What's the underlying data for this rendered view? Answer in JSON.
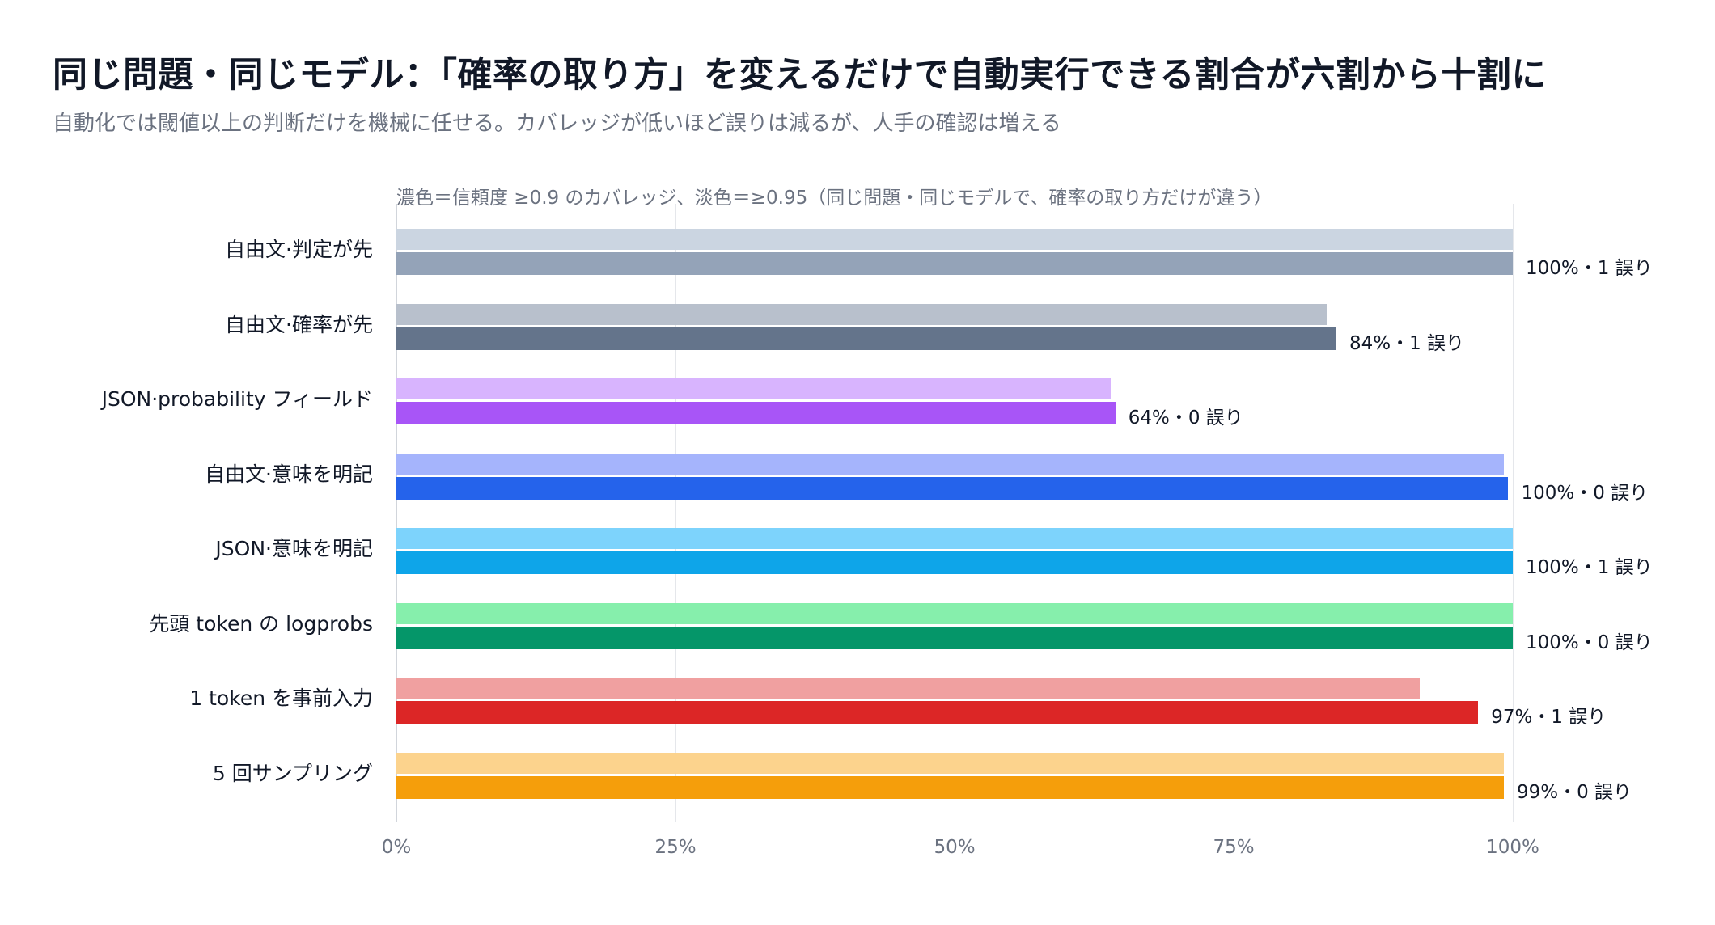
{
  "header": {
    "title": "同じ問題・同じモデル：「確率の取り方」を変えるだけで自動実行できる割合が六割から十割に",
    "subtitle": "自動化では閾値以上の判断だけを機械に任せる。カバレッジが低いほど誤りは減るが、人手の確認は増える"
  },
  "chart_data": {
    "type": "bar",
    "orientation": "horizontal",
    "note": "濃色＝信頼度 ≥0.9 のカバレッジ、淡色＝≥0.95（同じ問題・同じモデルで、確率の取り方だけが違う）",
    "categories": [
      "自由文·判定が先",
      "自由文·確率が先",
      "JSON·probability フィールド",
      "自由文·意味を明記",
      "JSON·意味を明記",
      "先頭 token の logprobs",
      "1 token を事前入力",
      "5 回サンプリング"
    ],
    "series": [
      {
        "threshold": "0.95",
        "values": [
          100,
          83.3,
          64,
          99.2,
          100,
          100,
          91.7,
          99.2
        ]
      },
      {
        "threshold": "0.9",
        "values": [
          100,
          84.2,
          64.4,
          99.6,
          100,
          100,
          96.9,
          99.2
        ]
      }
    ],
    "value_labels": [
      "100%・1 誤り",
      "84%・1 誤り",
      "64%・0 誤り",
      "100%・0 誤り",
      "100%・1 誤り",
      "100%・0 誤り",
      "97%・1 誤り",
      "99%・0 誤り"
    ],
    "colors_dark": [
      "#94a3b8",
      "#64748b",
      "#a855f7",
      "#2563eb",
      "#0ea5e9",
      "#059669",
      "#dc2626",
      "#f59e0b"
    ],
    "colors_light": [
      "#cbd5e1",
      "#b8c0cc",
      "#d8b4fe",
      "#a5b4fc",
      "#7dd3fc",
      "#86efac",
      "#f0a0a0",
      "#fcd38d"
    ],
    "xlim": [
      0,
      100
    ],
    "ticks": [
      "0%",
      "25%",
      "50%",
      "75%",
      "100%"
    ],
    "grid": true
  }
}
